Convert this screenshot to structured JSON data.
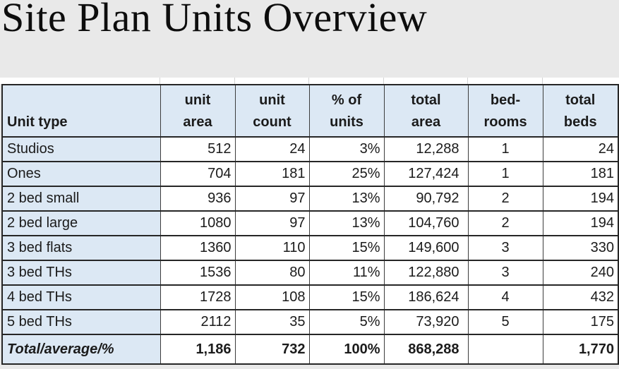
{
  "title": "Site Plan Units Overview",
  "colors": {
    "page_background": "#e9e9e9",
    "header_fill": "#dce8f4",
    "border_dark": "#262626",
    "border_vertical": "#3c3c3c"
  },
  "table": {
    "columns": [
      {
        "key": "unit_type",
        "label": "Unit type",
        "align": "left"
      },
      {
        "key": "unit_area",
        "label": "unit\narea",
        "align": "center"
      },
      {
        "key": "unit_count",
        "label": "unit\ncount",
        "align": "center"
      },
      {
        "key": "pct_of_units",
        "label": "% of\nunits",
        "align": "center"
      },
      {
        "key": "total_area",
        "label": "total\narea",
        "align": "center"
      },
      {
        "key": "bedrooms",
        "label": "bed-\nrooms",
        "align": "center"
      },
      {
        "key": "total_beds",
        "label": "total\nbeds",
        "align": "center"
      }
    ],
    "rows": [
      [
        "Studios",
        "512",
        "24",
        "3%",
        "12,288",
        "1",
        "24"
      ],
      [
        "Ones",
        "704",
        "181",
        "25%",
        "127,424",
        "1",
        "181"
      ],
      [
        "2 bed small",
        "936",
        "97",
        "13%",
        "90,792",
        "2",
        "194"
      ],
      [
        "2 bed large",
        "1080",
        "97",
        "13%",
        "104,760",
        "2",
        "194"
      ],
      [
        "3 bed flats",
        "1360",
        "110",
        "15%",
        "149,600",
        "3",
        "330"
      ],
      [
        "3 bed THs",
        "1536",
        "80",
        "11%",
        "122,880",
        "3",
        "240"
      ],
      [
        "4 bed THs",
        "1728",
        "108",
        "15%",
        "186,624",
        "4",
        "432"
      ],
      [
        "5 bed THs",
        "2112",
        "35",
        "5%",
        "73,920",
        "5",
        "175"
      ]
    ],
    "totals": [
      "Total/average/%",
      "1,186",
      "732",
      "100%",
      "868,288",
      "",
      "1,770"
    ]
  }
}
